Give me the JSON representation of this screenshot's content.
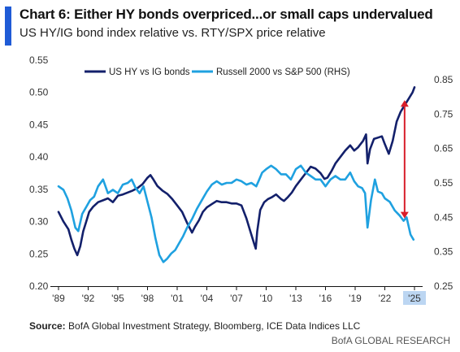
{
  "header": {
    "title": "Chart 6: Either HY bonds overpriced...or small caps undervalued",
    "subtitle": "US HY/IG bond index relative vs. RTY/SPX price relative"
  },
  "footer": {
    "source_label": "Source:",
    "source_text": " BofA Global Investment Strategy, Bloomberg, ICE Data Indices LLC",
    "brand": "BofA GLOBAL RESEARCH"
  },
  "colors": {
    "series_hy": "#13206b",
    "series_rty": "#1fa1e0",
    "arrow": "#d81e2a",
    "highlight": "#bcd6f2",
    "accent": "#1f5bd6"
  },
  "chart_data": {
    "type": "line",
    "title": "Chart 6: Either HY bonds overpriced...or small caps undervalued",
    "subtitle": "US HY/IG bond index relative vs. RTY/SPX price relative",
    "x_ticks": [
      "'89",
      "'92",
      "'95",
      "'98",
      "'01",
      "'04",
      "'07",
      "'10",
      "'13",
      "'16",
      "'19",
      "'22",
      "'25"
    ],
    "x_range": [
      1989.0,
      2025.0
    ],
    "highlighted_tick": "'25",
    "y_left": {
      "range": [
        0.2,
        0.55
      ],
      "ticks": [
        "0.20",
        "0.25",
        "0.30",
        "0.35",
        "0.40",
        "0.45",
        "0.50",
        "0.55"
      ]
    },
    "y_right": {
      "range": [
        0.25,
        0.85
      ],
      "ticks": [
        "0.25",
        "0.35",
        "0.45",
        "0.55",
        "0.65",
        "0.75",
        "0.85"
      ]
    },
    "legend_position": "top-left",
    "grid": false,
    "annotation": "double-headed arrow between series at 2024",
    "arrow": {
      "x": 2024.0,
      "y_left_top": 0.488,
      "y_left_bottom": 0.305
    },
    "series": [
      {
        "name": "US HY vs IG bonds",
        "axis": "left",
        "x": [
          1989.0,
          1989.5,
          1990.0,
          1990.3,
          1990.6,
          1990.9,
          1991.2,
          1991.5,
          1991.8,
          1992.1,
          1992.5,
          1993.0,
          1993.5,
          1994.0,
          1994.5,
          1995.0,
          1995.5,
          1996.0,
          1996.5,
          1997.0,
          1997.5,
          1998.0,
          1998.3,
          1998.6,
          1999.0,
          1999.5,
          2000.0,
          2000.5,
          2001.0,
          2001.5,
          2002.0,
          2002.5,
          2002.8,
          2003.2,
          2003.6,
          2004.0,
          2004.5,
          2005.0,
          2005.5,
          2006.0,
          2006.5,
          2007.0,
          2007.5,
          2008.0,
          2008.4,
          2008.8,
          2008.95,
          2009.1,
          2009.4,
          2009.8,
          2010.2,
          2010.6,
          2011.0,
          2011.5,
          2011.8,
          2012.2,
          2012.6,
          2013.0,
          2013.5,
          2014.0,
          2014.5,
          2015.0,
          2015.5,
          2015.9,
          2016.2,
          2016.6,
          2017.0,
          2017.5,
          2018.0,
          2018.5,
          2018.9,
          2019.3,
          2019.8,
          2020.1,
          2020.25,
          2020.5,
          2020.9,
          2021.3,
          2021.7,
          2022.0,
          2022.4,
          2022.8,
          2023.2,
          2023.6,
          2024.0,
          2024.4,
          2024.8,
          2025.0
        ],
        "y": [
          0.315,
          0.3,
          0.288,
          0.272,
          0.258,
          0.248,
          0.262,
          0.285,
          0.3,
          0.315,
          0.323,
          0.33,
          0.333,
          0.336,
          0.33,
          0.34,
          0.342,
          0.345,
          0.348,
          0.352,
          0.358,
          0.368,
          0.372,
          0.365,
          0.355,
          0.348,
          0.343,
          0.335,
          0.325,
          0.315,
          0.298,
          0.283,
          0.292,
          0.302,
          0.315,
          0.322,
          0.327,
          0.332,
          0.33,
          0.33,
          0.328,
          0.328,
          0.325,
          0.305,
          0.285,
          0.265,
          0.258,
          0.285,
          0.318,
          0.33,
          0.335,
          0.338,
          0.342,
          0.335,
          0.332,
          0.338,
          0.345,
          0.355,
          0.365,
          0.375,
          0.385,
          0.382,
          0.375,
          0.366,
          0.368,
          0.378,
          0.39,
          0.4,
          0.41,
          0.418,
          0.41,
          0.415,
          0.425,
          0.435,
          0.39,
          0.412,
          0.428,
          0.43,
          0.432,
          0.42,
          0.405,
          0.425,
          0.455,
          0.47,
          0.48,
          0.49,
          0.5,
          0.508
        ]
      },
      {
        "name": "Russell 2000 vs S&P 500 (RHS)",
        "axis": "right",
        "x": [
          1989.0,
          1989.5,
          1989.9,
          1990.3,
          1990.7,
          1991.0,
          1991.4,
          1991.8,
          1992.2,
          1992.6,
          1993.0,
          1993.5,
          1994.0,
          1994.5,
          1995.0,
          1995.5,
          1996.0,
          1996.4,
          1996.8,
          1997.2,
          1997.6,
          1998.0,
          1998.4,
          1998.8,
          1999.2,
          1999.6,
          2000.0,
          2000.4,
          2000.8,
          2001.2,
          2001.6,
          2002.0,
          2002.5,
          2003.0,
          2003.5,
          2004.0,
          2004.5,
          2005.0,
          2005.5,
          2006.0,
          2006.5,
          2007.0,
          2007.5,
          2008.0,
          2008.5,
          2009.0,
          2009.3,
          2009.6,
          2010.0,
          2010.5,
          2011.0,
          2011.5,
          2012.0,
          2012.5,
          2013.0,
          2013.5,
          2014.0,
          2014.5,
          2015.0,
          2015.5,
          2016.0,
          2016.5,
          2017.0,
          2017.5,
          2018.0,
          2018.5,
          2018.9,
          2019.3,
          2019.7,
          2020.0,
          2020.25,
          2020.6,
          2021.0,
          2021.3,
          2021.7,
          2022.0,
          2022.5,
          2023.0,
          2023.5,
          2023.9,
          2024.2,
          2024.6,
          2024.9
        ],
        "y": [
          0.54,
          0.53,
          0.505,
          0.47,
          0.42,
          0.41,
          0.46,
          0.48,
          0.5,
          0.51,
          0.54,
          0.56,
          0.52,
          0.53,
          0.52,
          0.545,
          0.55,
          0.56,
          0.535,
          0.52,
          0.54,
          0.495,
          0.45,
          0.39,
          0.34,
          0.32,
          0.33,
          0.345,
          0.355,
          0.375,
          0.395,
          0.42,
          0.445,
          0.475,
          0.5,
          0.525,
          0.545,
          0.555,
          0.545,
          0.55,
          0.55,
          0.56,
          0.555,
          0.545,
          0.55,
          0.54,
          0.56,
          0.58,
          0.59,
          0.6,
          0.59,
          0.575,
          0.575,
          0.56,
          0.59,
          0.6,
          0.58,
          0.57,
          0.56,
          0.56,
          0.54,
          0.56,
          0.57,
          0.56,
          0.56,
          0.58,
          0.555,
          0.54,
          0.535,
          0.52,
          0.42,
          0.5,
          0.56,
          0.525,
          0.52,
          0.505,
          0.495,
          0.47,
          0.455,
          0.44,
          0.45,
          0.4,
          0.385
        ]
      }
    ]
  }
}
